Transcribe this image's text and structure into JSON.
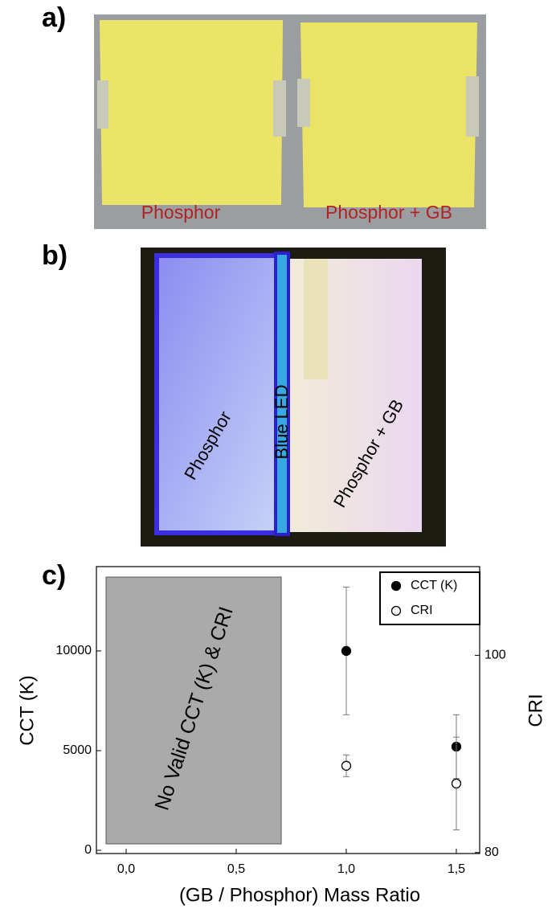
{
  "panels": {
    "a": {
      "label": "a)",
      "captions": [
        "Phosphor",
        "Phosphor + GB"
      ]
    },
    "b": {
      "label": "b)",
      "captions": [
        "Phosphor",
        "Blue LED",
        "Phosphor + GB"
      ]
    }
  },
  "chart_data": {
    "type": "scatter",
    "label": "c)",
    "xlabel": "(GB / Phosphor) Mass Ratio",
    "ylabel": "CCT (K)",
    "y2label": "CRI",
    "annotation": "No Valid CCT (K) & CRI",
    "xlim": [
      -0.135,
      1.606
    ],
    "xticks": [
      {
        "value": 0,
        "label": "0,0"
      },
      {
        "value": 0.5,
        "label": "0,5"
      },
      {
        "value": 1,
        "label": "1,0"
      },
      {
        "value": 1.5,
        "label": "1,5"
      }
    ],
    "ylim": [
      -160,
      14230
    ],
    "yticks": [
      0,
      5000,
      10000
    ],
    "y2lim": [
      79.9,
      109
    ],
    "y2ticks": [
      80,
      100
    ],
    "legend": "upper right",
    "series": [
      {
        "name": "CCT (K)",
        "marker": "filled",
        "color": "#000000",
        "x": [
          1.0,
          1.5
        ],
        "values": [
          10000,
          5200
        ],
        "errors": [
          3200,
          1600
        ]
      },
      {
        "name": "CRI",
        "axis": "y2",
        "marker": "open",
        "color": "#000000",
        "x": [
          1.0,
          1.5
        ],
        "values": [
          88.8,
          87
        ],
        "errors": [
          1.1,
          4.7
        ]
      }
    ]
  }
}
